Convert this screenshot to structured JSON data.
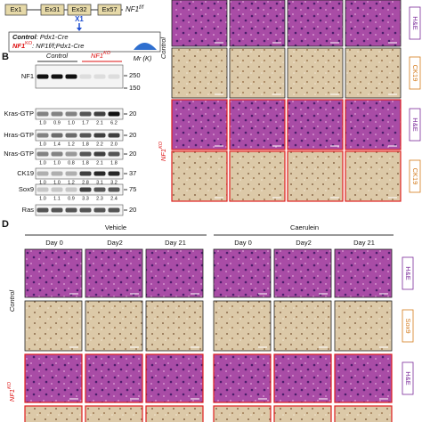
{
  "panel_a": {
    "exons": [
      "Ex1",
      "Ex31",
      "Ex32",
      "Ex57"
    ],
    "allele": {
      "base": "NF1",
      "sup": "f/f"
    },
    "deletion": "X1",
    "genotypes": [
      {
        "name": "Control",
        "text": ": Pdx1-Cre"
      },
      {
        "name": "NF1",
        "sup": "KO",
        "text": ": NF1f/f;Pdx1-Cre"
      }
    ]
  },
  "panel_b": {
    "label": "B",
    "groups": [
      "Control"
    ],
    "ko": {
      "base": "NF1",
      "sup": "KO"
    },
    "mr": "Mr (K)",
    "rows": [
      {
        "name": "NF1",
        "markers": [
          "250",
          "150"
        ],
        "ratios": null
      },
      {
        "name": "Kras-GTP",
        "markers": [
          "20"
        ],
        "ratios": [
          "1.0",
          "0.9",
          "1.0",
          "1.7",
          "2.1",
          "6.2"
        ]
      },
      {
        "name": "Hras-GTP",
        "markers": [
          "20"
        ],
        "ratios": [
          "1.0",
          "1.4",
          "1.2",
          "1.8",
          "2.2",
          "2.0"
        ]
      },
      {
        "name": "Nras-GTP",
        "markers": [
          "20"
        ],
        "ratios": [
          "1.0",
          "1.0",
          "0.8",
          "1.8",
          "2.1",
          "1.8"
        ]
      },
      {
        "name": "CK19",
        "markers": [
          "37"
        ],
        "ratios": [
          "1.0",
          "1.0",
          "1.2",
          "2.8",
          "3.1",
          "3.2"
        ]
      },
      {
        "name": "Sox9",
        "markers": [
          "75"
        ],
        "ratios": [
          "1.0",
          "1.1",
          "0.9",
          "3.3",
          "2.3",
          "2.4"
        ]
      },
      {
        "name": "Ras",
        "markers": [
          "20"
        ],
        "ratios": null
      }
    ]
  },
  "panel_c": {
    "groups": [
      {
        "name": "Control"
      },
      {
        "name": "NF1",
        "sup": "KO"
      }
    ],
    "stains": [
      "H&E",
      "CK19"
    ]
  },
  "panel_d": {
    "label": "D",
    "groups": [
      "Vehicle",
      "Caerulein"
    ],
    "days": [
      "Day 0",
      "Day2",
      "Day 21",
      "Day 0",
      "Day2",
      "Day 21"
    ],
    "row_groups": [
      {
        "name": "Control"
      },
      {
        "name": "NF1",
        "sup": "KO"
      }
    ],
    "stains": [
      "H&E",
      "Sox9"
    ]
  }
}
